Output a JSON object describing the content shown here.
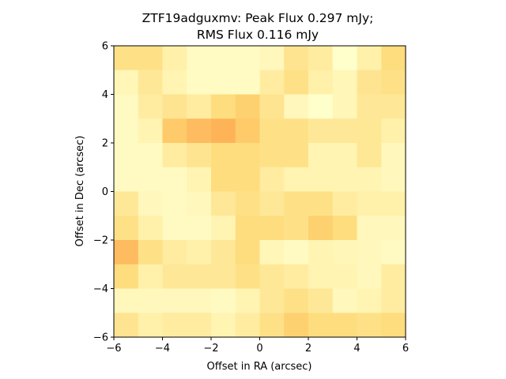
{
  "chart_data": {
    "type": "heatmap",
    "title_line1": "ZTF19adguxmv: Peak Flux 0.297 mJy;",
    "title_line2": "RMS Flux 0.116 mJy",
    "xlabel": "Offset in RA (arcsec)",
    "ylabel": "Offset in Dec (arcsec)",
    "xlim": [
      -6,
      6
    ],
    "ylim": [
      -6,
      6
    ],
    "xticks": [
      -6,
      -4,
      -2,
      0,
      2,
      4,
      6
    ],
    "yticks": [
      -6,
      -4,
      -2,
      0,
      2,
      4,
      6
    ],
    "xtick_labels": [
      "−6",
      "−4",
      "−2",
      "0",
      "2",
      "4",
      "6"
    ],
    "ytick_labels": [
      "−6",
      "−4",
      "−2",
      "0",
      "2",
      "4",
      "6"
    ],
    "colormap": {
      "low": "#ffffcc",
      "mid": "#fed976",
      "high": "#fd8d3c"
    },
    "value_range": [
      0,
      1
    ],
    "grid": false,
    "cells_top_to_bottom": [
      [
        0.4,
        0.4,
        0.2,
        0.05,
        0.05,
        0.05,
        0.1,
        0.35,
        0.25,
        0.0,
        0.2,
        0.45
      ],
      [
        0.12,
        0.3,
        0.15,
        0.05,
        0.05,
        0.05,
        0.25,
        0.4,
        0.2,
        0.12,
        0.35,
        0.4
      ],
      [
        0.06,
        0.25,
        0.35,
        0.25,
        0.45,
        0.55,
        0.35,
        0.1,
        0.0,
        0.12,
        0.3,
        0.3
      ],
      [
        0.06,
        0.15,
        0.6,
        0.7,
        0.75,
        0.6,
        0.4,
        0.4,
        0.3,
        0.3,
        0.32,
        0.2
      ],
      [
        0.06,
        0.06,
        0.25,
        0.35,
        0.45,
        0.45,
        0.4,
        0.4,
        0.15,
        0.15,
        0.32,
        0.1
      ],
      [
        0.06,
        0.06,
        0.06,
        0.15,
        0.45,
        0.45,
        0.25,
        0.15,
        0.15,
        0.15,
        0.15,
        0.1
      ],
      [
        0.3,
        0.1,
        0.06,
        0.1,
        0.3,
        0.4,
        0.3,
        0.4,
        0.4,
        0.25,
        0.2,
        0.2
      ],
      [
        0.4,
        0.2,
        0.06,
        0.06,
        0.15,
        0.45,
        0.45,
        0.4,
        0.55,
        0.45,
        0.1,
        0.1
      ],
      [
        0.7,
        0.4,
        0.25,
        0.2,
        0.3,
        0.45,
        0.12,
        0.06,
        0.15,
        0.12,
        0.1,
        0.06
      ],
      [
        0.45,
        0.2,
        0.3,
        0.3,
        0.3,
        0.4,
        0.3,
        0.25,
        0.15,
        0.15,
        0.1,
        0.25
      ],
      [
        0.1,
        0.1,
        0.1,
        0.1,
        0.06,
        0.15,
        0.3,
        0.4,
        0.3,
        0.1,
        0.15,
        0.25
      ],
      [
        0.35,
        0.2,
        0.25,
        0.25,
        0.15,
        0.25,
        0.4,
        0.55,
        0.45,
        0.45,
        0.4,
        0.45
      ]
    ]
  }
}
